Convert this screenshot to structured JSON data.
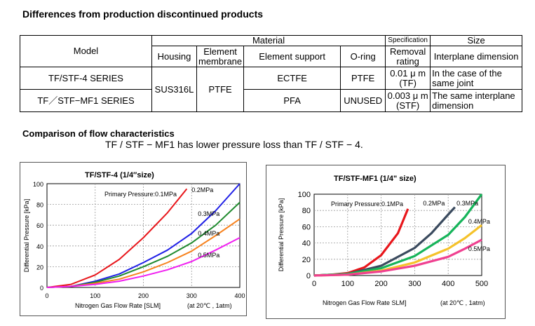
{
  "heading": "Differences from production discontinued products",
  "table": {
    "h_model": "Model",
    "h_material": "Material",
    "h_spec": "Specification",
    "h_size": "Size",
    "h_housing": "Housing",
    "h_membrane_1": "Element",
    "h_membrane_2": "membrane",
    "h_support": "Element support",
    "h_oring": "O-ring",
    "h_removal_1": "Removal",
    "h_removal_2": "rating",
    "h_interplane": "Interplane dimension",
    "row1_model": "TF/STF-4  SERIES",
    "row2_model": "TF／STF−MF1  SERIES",
    "housing": "SUS316L",
    "membrane": "PTFE",
    "row1_support": "ECTFE",
    "row2_support": "PFA",
    "row1_oring": "PTFE",
    "row2_oring": "UNUSED",
    "row1_rating_1": "0.01 μ m",
    "row1_rating_2": "(TF)",
    "row2_rating_1": "0.003 μ m",
    "row2_rating_2": "(STF)",
    "row1_size_1": "In the case of the",
    "row1_size_2": "same joint",
    "row2_size_1": "The same interplane",
    "row2_size_2": "dimension"
  },
  "comparison_heading": "Comparison of flow characteristics",
  "comparison_subtitle": "TF / STF − MF1 has lower pressure loss than TF / STF − 4.",
  "chart_data": [
    {
      "type": "line",
      "title": "TF/STF-4 (1/4″size)",
      "xlabel": "Nitrogen Gas Flow Rate [SLM]",
      "ylabel": "Differential Pressure [kPa]",
      "conditions": "(at 20℃ ,  1atm)",
      "annotation": "Primary Pressure:0.1MPa",
      "xlim": [
        0,
        400
      ],
      "ylim": [
        0,
        100
      ],
      "xticks": [
        "0",
        "100",
        "200",
        "300",
        "400"
      ],
      "yticks": [
        "0",
        "20",
        "40",
        "60",
        "80",
        "100"
      ],
      "series": [
        {
          "name": "0.1MPa",
          "color": "#e8161b",
          "x": [
            0,
            50,
            100,
            150,
            200,
            250,
            290
          ],
          "y": [
            0,
            3,
            12,
            27,
            48,
            72,
            95
          ]
        },
        {
          "name": "0.2MPa",
          "color": "#1f1fe6",
          "x": [
            0,
            50,
            100,
            150,
            200,
            250,
            300,
            350,
            400
          ],
          "y": [
            0,
            1,
            6,
            13,
            24,
            36,
            52,
            74,
            100
          ]
        },
        {
          "name": "0.3MPa",
          "color": "#1f8a2e",
          "x": [
            0,
            50,
            100,
            150,
            200,
            250,
            300,
            350,
            400
          ],
          "y": [
            0,
            1,
            5,
            11,
            20,
            30,
            43,
            60,
            82
          ]
        },
        {
          "name": "0.4MPa",
          "color": "#f7821e",
          "x": [
            0,
            50,
            100,
            150,
            200,
            250,
            300,
            350,
            400
          ],
          "y": [
            0,
            1,
            4,
            8,
            15,
            24,
            35,
            50,
            66
          ]
        },
        {
          "name": "0.5MPa",
          "color": "#f01ef0",
          "x": [
            0,
            50,
            100,
            150,
            200,
            250,
            300,
            350,
            400
          ],
          "y": [
            0,
            1,
            3,
            6,
            11,
            17,
            25,
            36,
            48
          ]
        }
      ],
      "labels": [
        {
          "text": "0.2MPa",
          "x": 300,
          "y": 92
        },
        {
          "text": "0.3MPa",
          "x": 313,
          "y": 69
        },
        {
          "text": "0.4MPa",
          "x": 313,
          "y": 50
        },
        {
          "text": "0.5MPa",
          "x": 313,
          "y": 29
        }
      ]
    },
    {
      "type": "line",
      "title": "TF/STF-MF1  (1/4\" size)",
      "xlabel": "Nitrogen Gas Flow Rate  SLM]",
      "ylabel": "Differential Pressure  [kPa]",
      "conditions": "(at 20℃ ,  1atm)",
      "annotation": "Primary Pressure:0.1MPa",
      "xlim": [
        0,
        500
      ],
      "ylim": [
        0,
        100
      ],
      "xticks": [
        "0",
        "100",
        "200",
        "300",
        "400",
        "500"
      ],
      "yticks": [
        "0",
        "20",
        "40",
        "60",
        "80",
        "100"
      ],
      "series": [
        {
          "name": "0.1MPa",
          "color": "#e8161b",
          "x": [
            0,
            50,
            100,
            150,
            200,
            250,
            280
          ],
          "y": [
            0,
            1,
            3,
            10,
            25,
            52,
            82
          ]
        },
        {
          "name": "0.2MPa",
          "color": "#3a4a5e",
          "x": [
            0,
            100,
            200,
            300,
            350,
            400,
            420
          ],
          "y": [
            0,
            2,
            12,
            34,
            52,
            75,
            84
          ]
        },
        {
          "name": "0.3MPa",
          "color": "#16b45a",
          "x": [
            0,
            100,
            200,
            300,
            400,
            450,
            500
          ],
          "y": [
            0,
            2,
            9,
            24,
            50,
            72,
            100
          ]
        },
        {
          "name": "0.4MPa",
          "color": "#f5c22a",
          "x": [
            0,
            100,
            200,
            300,
            400,
            450,
            500
          ],
          "y": [
            0,
            1,
            6,
            16,
            33,
            46,
            62
          ]
        },
        {
          "name": "0.5MPa",
          "color": "#f04090",
          "x": [
            0,
            100,
            200,
            300,
            400,
            450,
            500
          ],
          "y": [
            0,
            1,
            5,
            12,
            23,
            33,
            44
          ]
        }
      ],
      "labels": [
        {
          "text": "0.2MPa",
          "x": 325,
          "y": 86
        },
        {
          "text": "0.3MPa",
          "x": 425,
          "y": 86
        },
        {
          "text": "0.4MPa",
          "x": 460,
          "y": 64
        },
        {
          "text": "0.5MPa",
          "x": 460,
          "y": 30
        }
      ]
    }
  ]
}
